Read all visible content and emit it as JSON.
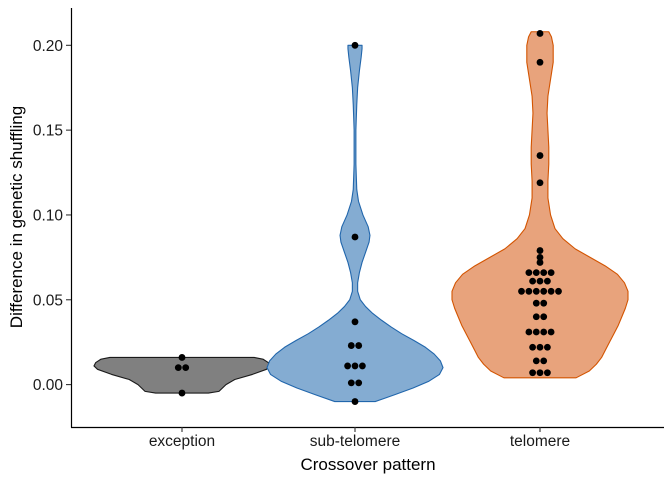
{
  "chart_data": {
    "type": "violin",
    "title": "",
    "xlabel": "Crossover pattern",
    "ylabel": "Difference in genetic shuffling",
    "ylim": [
      -0.025,
      0.222
    ],
    "yticks": [
      0.0,
      0.05,
      0.1,
      0.15,
      0.2
    ],
    "ytick_labels": [
      "0.00",
      "0.05",
      "0.10",
      "0.15",
      "0.20"
    ],
    "categories": [
      "exception",
      "sub-telomere",
      "telomere"
    ],
    "grid": false,
    "legend": "none",
    "series": [
      {
        "category": "exception",
        "fill": "#808080",
        "stroke": "#1a1a1a",
        "points": [
          -0.005,
          0.01,
          0.01,
          0.016
        ],
        "violin_profile": [
          [
            -0.005,
            0.3
          ],
          [
            -0.004,
            0.42
          ],
          [
            -0.002,
            0.46
          ],
          [
            0.0,
            0.5
          ],
          [
            0.003,
            0.6
          ],
          [
            0.006,
            0.8
          ],
          [
            0.009,
            0.96
          ],
          [
            0.011,
            1.0
          ],
          [
            0.013,
            0.98
          ],
          [
            0.015,
            0.92
          ],
          [
            0.016,
            0.82
          ]
        ]
      },
      {
        "category": "sub-telomere",
        "fill": "#84acd2",
        "stroke": "#2166ac",
        "points": [
          -0.01,
          0.001,
          0.001,
          0.011,
          0.011,
          0.011,
          0.023,
          0.023,
          0.037,
          0.087,
          0.2
        ],
        "violin_profile": [
          [
            -0.01,
            0.23
          ],
          [
            -0.006,
            0.45
          ],
          [
            -0.002,
            0.66
          ],
          [
            0.002,
            0.84
          ],
          [
            0.006,
            0.96
          ],
          [
            0.01,
            1.0
          ],
          [
            0.014,
            0.97
          ],
          [
            0.018,
            0.9
          ],
          [
            0.022,
            0.8
          ],
          [
            0.026,
            0.67
          ],
          [
            0.03,
            0.53
          ],
          [
            0.034,
            0.41
          ],
          [
            0.038,
            0.3
          ],
          [
            0.042,
            0.2
          ],
          [
            0.046,
            0.12
          ],
          [
            0.05,
            0.06
          ],
          [
            0.055,
            0.03
          ],
          [
            0.06,
            0.03
          ],
          [
            0.066,
            0.05
          ],
          [
            0.072,
            0.08
          ],
          [
            0.078,
            0.12
          ],
          [
            0.084,
            0.16
          ],
          [
            0.088,
            0.17
          ],
          [
            0.093,
            0.15
          ],
          [
            0.1,
            0.09
          ],
          [
            0.108,
            0.04
          ],
          [
            0.115,
            0.02
          ],
          [
            0.13,
            0.01
          ],
          [
            0.15,
            0.01
          ],
          [
            0.165,
            0.02
          ],
          [
            0.175,
            0.03
          ],
          [
            0.185,
            0.05
          ],
          [
            0.193,
            0.07
          ],
          [
            0.198,
            0.08
          ],
          [
            0.2,
            0.08
          ]
        ]
      },
      {
        "category": "telomere",
        "fill": "#e8a37c",
        "stroke": "#d35400",
        "points": [
          0.007,
          0.007,
          0.007,
          0.014,
          0.014,
          0.022,
          0.022,
          0.022,
          0.031,
          0.031,
          0.031,
          0.031,
          0.04,
          0.04,
          0.048,
          0.048,
          0.055,
          0.055,
          0.055,
          0.055,
          0.055,
          0.055,
          0.061,
          0.061,
          0.061,
          0.066,
          0.066,
          0.066,
          0.066,
          0.072,
          0.075,
          0.079,
          0.119,
          0.135,
          0.19,
          0.207
        ],
        "violin_profile": [
          [
            0.004,
            0.41
          ],
          [
            0.008,
            0.56
          ],
          [
            0.012,
            0.64
          ],
          [
            0.016,
            0.7
          ],
          [
            0.02,
            0.74
          ],
          [
            0.025,
            0.79
          ],
          [
            0.03,
            0.84
          ],
          [
            0.035,
            0.89
          ],
          [
            0.04,
            0.93
          ],
          [
            0.045,
            0.97
          ],
          [
            0.05,
            1.0
          ],
          [
            0.055,
            1.0
          ],
          [
            0.06,
            0.96
          ],
          [
            0.065,
            0.88
          ],
          [
            0.07,
            0.74
          ],
          [
            0.075,
            0.57
          ],
          [
            0.08,
            0.4
          ],
          [
            0.086,
            0.26
          ],
          [
            0.092,
            0.17
          ],
          [
            0.1,
            0.12
          ],
          [
            0.11,
            0.09
          ],
          [
            0.12,
            0.09
          ],
          [
            0.13,
            0.1
          ],
          [
            0.14,
            0.1
          ],
          [
            0.15,
            0.09
          ],
          [
            0.16,
            0.08
          ],
          [
            0.17,
            0.09
          ],
          [
            0.18,
            0.12
          ],
          [
            0.19,
            0.15
          ],
          [
            0.2,
            0.15
          ],
          [
            0.205,
            0.13
          ],
          [
            0.208,
            0.1
          ]
        ]
      }
    ]
  }
}
